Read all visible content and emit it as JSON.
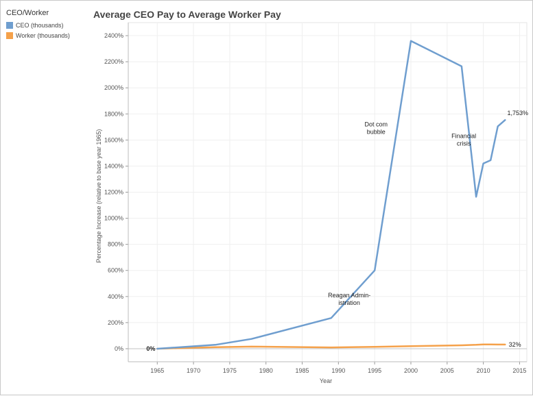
{
  "chart_data": {
    "type": "line",
    "title": "Average CEO Pay to Average Worker Pay",
    "xlabel": "Year",
    "ylabel": "Percentage Increase (relative to base year 1965)",
    "xlim": [
      1961,
      2016
    ],
    "ylim": [
      -100,
      2500
    ],
    "x_ticks": [
      1965,
      1970,
      1975,
      1980,
      1985,
      1990,
      1995,
      2000,
      2005,
      2010,
      2015
    ],
    "y_ticks": [
      0,
      200,
      400,
      600,
      800,
      1000,
      1200,
      1400,
      1600,
      1800,
      2000,
      2200,
      2400
    ],
    "y_tick_format": "percent",
    "grid": true,
    "legend": {
      "title": "CEO/Worker",
      "position": "top-left"
    },
    "series": [
      {
        "name": "CEO (thousands)",
        "color": "#6f9ecf",
        "x": [
          1965,
          1973,
          1978,
          1989,
          1995,
          2000,
          2007,
          2009,
          2010,
          2011,
          2012,
          2013
        ],
        "y": [
          0,
          30,
          75,
          235,
          600,
          2360,
          2165,
          1165,
          1420,
          1445,
          1705,
          1753
        ]
      },
      {
        "name": "Worker (thousands)",
        "color": "#f5a14a",
        "x": [
          1965,
          1973,
          1978,
          1989,
          1995,
          2000,
          2007,
          2009,
          2010,
          2011,
          2012,
          2013
        ],
        "y": [
          0,
          12,
          16,
          10,
          14,
          20,
          26,
          30,
          33,
          33,
          32,
          32
        ]
      }
    ],
    "annotations": [
      {
        "text": "Reagan Admin-\nistration",
        "x": 1991.5,
        "y": 395
      },
      {
        "text": "Dot com\nbubble",
        "x": 1995.2,
        "y": 1705
      },
      {
        "text": "Financial\ncrisis",
        "x": 2007.3,
        "y": 1615
      },
      {
        "text": "1,753%",
        "x": 2013.3,
        "y": 1790
      },
      {
        "text": "0%",
        "x": 1963.5,
        "y": 0
      },
      {
        "text": "32%",
        "x": 2013.5,
        "y": 32
      }
    ]
  }
}
